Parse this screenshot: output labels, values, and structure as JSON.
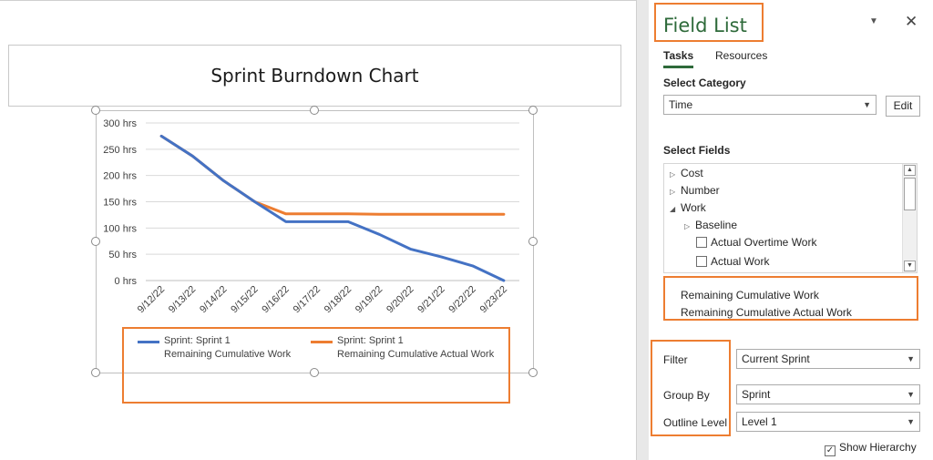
{
  "chart_data": {
    "type": "line",
    "title": "Sprint Burndown Chart",
    "categories": [
      "9/12/22",
      "9/13/22",
      "9/14/22",
      "9/15/22",
      "9/16/22",
      "9/17/22",
      "9/18/22",
      "9/19/22",
      "9/20/22",
      "9/21/22",
      "9/22/22",
      "9/23/22"
    ],
    "yticks": [
      "300 hrs",
      "250 hrs",
      "200 hrs",
      "150 hrs",
      "100 hrs",
      "50 hrs",
      "0 hrs"
    ],
    "ylim": [
      0,
      300
    ],
    "grid": true,
    "legend_position": "bottom",
    "series": [
      {
        "name_line1": "Sprint: Sprint 1",
        "name_line2": "Remaining Cumulative Work",
        "color": "#4472c4",
        "values": [
          275,
          237,
          190,
          150,
          112,
          112,
          112,
          88,
          60,
          45,
          28,
          0
        ]
      },
      {
        "name_line1": "Sprint: Sprint 1",
        "name_line2": "Remaining Cumulative Actual Work",
        "color": "#ed7d31",
        "values": [
          275,
          237,
          190,
          150,
          127,
          127,
          127,
          126,
          126,
          126,
          126,
          126
        ]
      }
    ]
  },
  "panel": {
    "title": "Field List",
    "tabs": [
      "Tasks",
      "Resources"
    ],
    "select_category_label": "Select Category",
    "category_value": "Time",
    "edit_label": "Edit",
    "select_fields_label": "Select Fields",
    "tree": [
      {
        "label": "Cost",
        "kind": "collapsed"
      },
      {
        "label": "Number",
        "kind": "collapsed"
      },
      {
        "label": "Work",
        "kind": "expanded"
      },
      {
        "label": "Baseline",
        "kind": "collapsed"
      },
      {
        "label": "Actual Overtime Work",
        "kind": "checkbox"
      },
      {
        "label": "Actual Work",
        "kind": "checkbox"
      }
    ],
    "selected_values": [
      "Remaining Cumulative Work",
      "Remaining Cumulative Actual Work"
    ],
    "filter_label": "Filter",
    "filter_value": "Current Sprint",
    "group_by_label": "Group By",
    "group_by_value": "Sprint",
    "outline_level_label": "Outline Level",
    "outline_level_value": "Level 1",
    "show_hierarchy_label": "Show Hierarchy",
    "highlight_color": "#ed7d31",
    "accent_color": "#2e6a3a"
  }
}
